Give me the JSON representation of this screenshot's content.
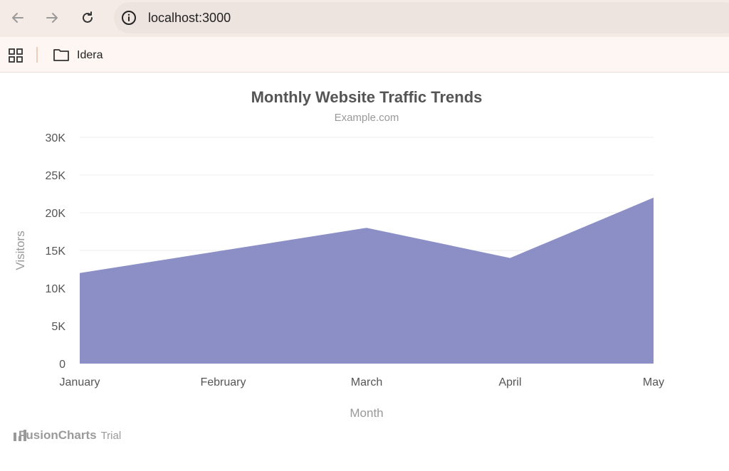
{
  "browser": {
    "url": "localhost:3000",
    "bookmark_label": "Idera"
  },
  "chart_data": {
    "type": "area",
    "title": "Monthly Website Traffic Trends",
    "subtitle": "Example.com",
    "xlabel": "Month",
    "ylabel": "Visitors",
    "categories": [
      "January",
      "February",
      "March",
      "April",
      "May"
    ],
    "values": [
      12000,
      15000,
      18000,
      14000,
      22000
    ],
    "ylim": [
      0,
      30000
    ],
    "yticks": [
      0,
      5000,
      10000,
      15000,
      20000,
      25000,
      30000
    ],
    "ytick_labels": [
      "0",
      "5K",
      "10K",
      "15K",
      "20K",
      "25K",
      "30K"
    ],
    "grid": true,
    "color": "#8b8fc6"
  },
  "watermark": {
    "brand": "FusionCharts",
    "suffix": "Trial"
  }
}
